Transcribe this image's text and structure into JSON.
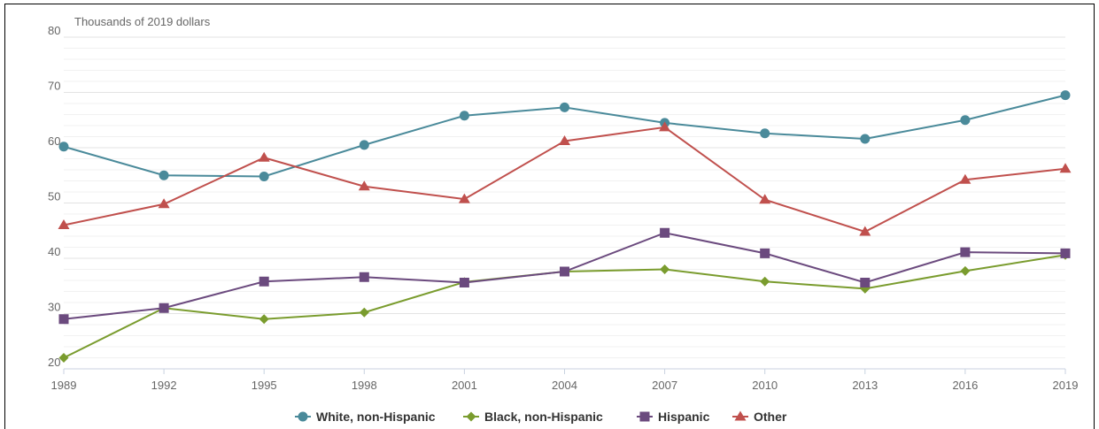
{
  "chart_data": {
    "type": "line",
    "ylabel": "Thousands of 2019 dollars",
    "x": [
      "1989",
      "1992",
      "1995",
      "1998",
      "2001",
      "2004",
      "2007",
      "2010",
      "2013",
      "2016",
      "2019"
    ],
    "ylim": [
      20,
      80
    ],
    "yticks": [
      20,
      30,
      40,
      50,
      60,
      70,
      80
    ],
    "grid": true,
    "legend_position": "bottom-center",
    "series": [
      {
        "name": "White, non-Hispanic",
        "color": "#4a8a9a",
        "marker": "circle",
        "values": [
          60.2,
          55.0,
          54.8,
          60.5,
          65.8,
          67.3,
          64.5,
          62.6,
          61.6,
          65.0,
          69.5
        ]
      },
      {
        "name": "Black, non-Hispanic",
        "color": "#7a9c2e",
        "marker": "diamond",
        "values": [
          22.0,
          31.0,
          29.0,
          30.2,
          35.7,
          37.6,
          38.0,
          35.8,
          34.5,
          37.7,
          40.6
        ]
      },
      {
        "name": "Hispanic",
        "color": "#6b4a7e",
        "marker": "square",
        "values": [
          29.0,
          31.0,
          35.8,
          36.6,
          35.6,
          37.6,
          44.6,
          40.9,
          35.6,
          41.1,
          40.9
        ]
      },
      {
        "name": "Other",
        "color": "#c0504d",
        "marker": "triangle",
        "values": [
          46.0,
          49.8,
          58.2,
          53.0,
          50.7,
          61.2,
          63.7,
          50.6,
          44.8,
          54.2,
          56.2
        ]
      }
    ]
  }
}
